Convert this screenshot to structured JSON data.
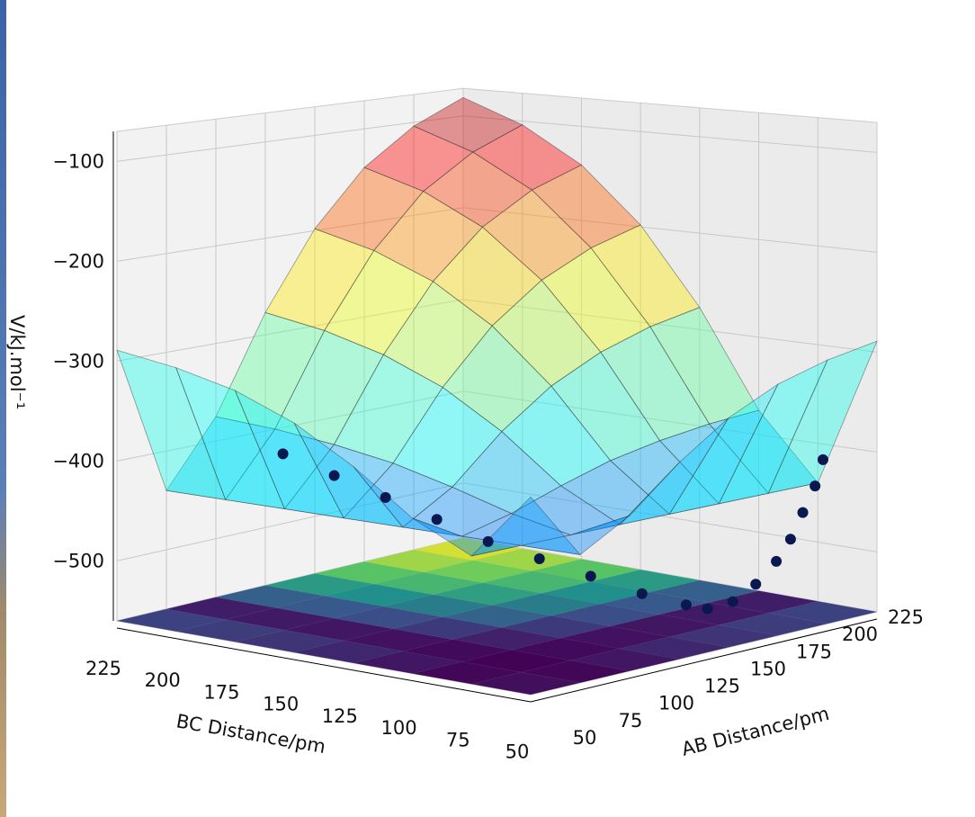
{
  "chart_data": {
    "type": "surface3d",
    "title": "",
    "xlabel": "AB Distance/pm",
    "ylabel": "BC Distance/pm",
    "zlabel": "V/kJ.mol⁻¹",
    "x_ticks": [
      "50",
      "75",
      "100",
      "125",
      "150",
      "175",
      "200",
      "225"
    ],
    "y_ticks": [
      "225",
      "200",
      "175",
      "150",
      "125",
      "100",
      "75",
      "50"
    ],
    "z_ticks": [
      "−100",
      "−200",
      "−300",
      "−400",
      "−500"
    ],
    "z_tick_values": [
      -100,
      -200,
      -300,
      -400,
      -500
    ],
    "xlim": [
      50,
      225
    ],
    "ylim": [
      50,
      225
    ],
    "zlim": [
      -560,
      -70
    ],
    "grid": true,
    "surface_colormap": "jet",
    "floor_colormap": "viridis",
    "grid_ab": [
      50,
      75,
      100,
      125,
      150,
      175,
      200,
      225
    ],
    "grid_bc": [
      50,
      75,
      100,
      125,
      150,
      175,
      200,
      225
    ],
    "surface_values": [
      [
        -377,
        -440,
        -413,
        -372,
        -338,
        -314,
        -299,
        -289
      ],
      [
        -440,
        -440,
        -440,
        -440,
        -440,
        -440,
        -440,
        -440
      ],
      [
        -413,
        -440,
        -428,
        -411,
        -396,
        -386,
        -379,
        -375
      ],
      [
        -372,
        -440,
        -411,
        -366,
        -330,
        -305,
        -288,
        -277
      ],
      [
        -338,
        -440,
        -396,
        -330,
        -277,
        -239,
        -214,
        -198
      ],
      [
        -314,
        -440,
        -386,
        -305,
        -239,
        -191,
        -160,
        -141
      ],
      [
        -299,
        -440,
        -379,
        -288,
        -214,
        -160,
        -126,
        -104
      ],
      [
        -289,
        -440,
        -375,
        -277,
        -198,
        -141,
        -104,
        -80
      ]
    ],
    "trajectory": [
      [
        110,
        205,
        -410
      ],
      [
        118,
        190,
        -430
      ],
      [
        126,
        175,
        -450
      ],
      [
        134,
        160,
        -470
      ],
      [
        142,
        145,
        -490
      ],
      [
        150,
        130,
        -505
      ],
      [
        158,
        115,
        -520
      ],
      [
        166,
        100,
        -535
      ],
      [
        174,
        88,
        -545
      ],
      [
        224,
        72,
        -415
      ],
      [
        220,
        72,
        -440
      ],
      [
        215,
        73,
        -465
      ],
      [
        210,
        74,
        -490
      ],
      [
        204,
        75,
        -510
      ],
      [
        196,
        77,
        -530
      ],
      [
        188,
        80,
        -545
      ],
      [
        180,
        84,
        -550
      ]
    ],
    "trajectory_color": "#0a1850"
  }
}
